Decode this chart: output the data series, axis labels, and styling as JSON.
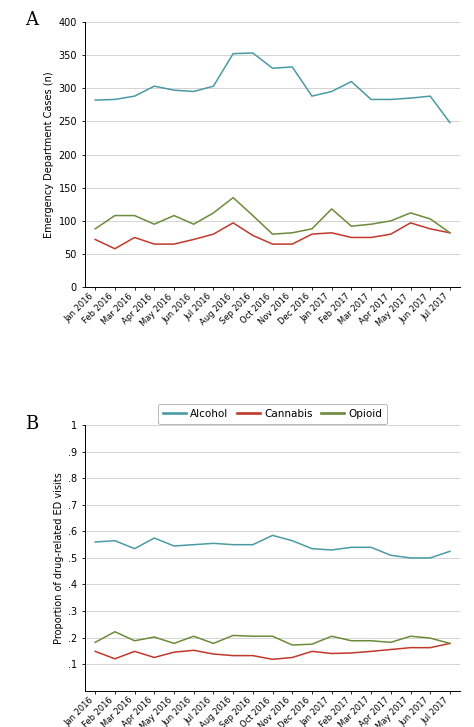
{
  "months": [
    "Jan 2016",
    "Feb 2016",
    "Mar 2016",
    "Apr 2016",
    "May 2016",
    "Jun 2016",
    "Jul 2016",
    "Aug 2016",
    "Sep 2016",
    "Oct 2016",
    "Nov 2016",
    "Dec 2016",
    "Jan 2017",
    "Feb 2017",
    "Mar 2017",
    "Apr 2017",
    "May 2017",
    "Jun 2017",
    "Jul 2017"
  ],
  "panel_a": {
    "alcohol": [
      282,
      283,
      288,
      303,
      297,
      295,
      303,
      352,
      353,
      330,
      332,
      288,
      295,
      310,
      283,
      283,
      285,
      288,
      248
    ],
    "cannabis": [
      72,
      58,
      75,
      65,
      65,
      72,
      80,
      97,
      78,
      65,
      65,
      80,
      82,
      75,
      75,
      80,
      97,
      88,
      82
    ],
    "opioid": [
      88,
      108,
      108,
      95,
      108,
      95,
      112,
      135,
      108,
      80,
      82,
      88,
      118,
      92,
      95,
      100,
      112,
      103,
      82
    ],
    "ylabel": "Emergency Department Cases (n)",
    "ylim": [
      0,
      400
    ],
    "yticks": [
      0,
      50,
      100,
      150,
      200,
      250,
      300,
      350,
      400
    ]
  },
  "panel_b": {
    "alcohol": [
      0.56,
      0.565,
      0.535,
      0.575,
      0.545,
      0.55,
      0.555,
      0.55,
      0.55,
      0.585,
      0.565,
      0.535,
      0.53,
      0.54,
      0.54,
      0.51,
      0.5,
      0.5,
      0.525
    ],
    "cannabis": [
      0.148,
      0.12,
      0.148,
      0.125,
      0.145,
      0.152,
      0.138,
      0.132,
      0.132,
      0.118,
      0.125,
      0.148,
      0.14,
      0.142,
      0.148,
      0.155,
      0.162,
      0.162,
      0.178
    ],
    "opioid": [
      0.182,
      0.222,
      0.188,
      0.202,
      0.178,
      0.205,
      0.178,
      0.208,
      0.205,
      0.205,
      0.172,
      0.175,
      0.205,
      0.188,
      0.188,
      0.182,
      0.205,
      0.198,
      0.178
    ],
    "ylabel": "Proportion of drug-related ED visits",
    "ylim": [
      0,
      1.0
    ],
    "yticks": [
      0.1,
      0.2,
      0.3,
      0.4,
      0.5,
      0.6,
      0.7,
      0.8,
      0.9,
      1.0
    ],
    "yticklabels": [
      ".1",
      ".2",
      ".3",
      ".4",
      ".5",
      ".6",
      ".7",
      ".8",
      ".9",
      "1"
    ]
  },
  "colors": {
    "alcohol": "#4a9aa5",
    "cannabis": "#c0392b",
    "opioid": "#6b8c3a"
  },
  "panel_labels": [
    "A",
    "B"
  ],
  "legend_labels": [
    "Alcohol",
    "Cannabis",
    "Opioid"
  ],
  "background_color": "#ffffff",
  "grid_color": "#cccccc",
  "linewidth": 1.1
}
